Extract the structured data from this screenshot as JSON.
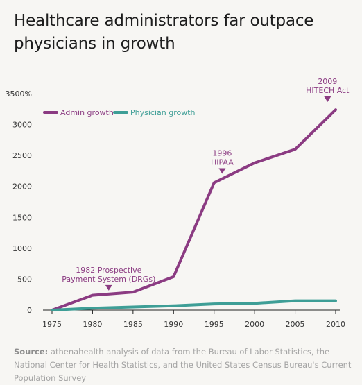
{
  "header": {
    "title_line1": "Healthcare administrators far outpace",
    "title_line2": "physicians in growth"
  },
  "chart_data": {
    "type": "line",
    "x": [
      1975,
      1980,
      1985,
      1990,
      1995,
      2000,
      2005,
      2010
    ],
    "ylim": [
      0,
      3500
    ],
    "xlim": [
      1975,
      2010
    ],
    "y_ticks": [
      0,
      500,
      1000,
      1500,
      2000,
      2500,
      3000,
      3500
    ],
    "y_tick_labels": [
      "0",
      "500",
      "1000",
      "1500",
      "2000",
      "2500",
      "3000",
      "3500%"
    ],
    "x_ticks": [
      1975,
      1980,
      1985,
      1990,
      1995,
      2000,
      2005,
      2010
    ],
    "x_tick_labels": [
      "1975",
      "1980",
      "1985",
      "1990",
      "1995",
      "2000",
      "2005",
      "2010"
    ],
    "grid": false,
    "legend_position": "top-left",
    "series": [
      {
        "name": "Admin growth",
        "color": "#8b3b82",
        "points": [
          [
            1975,
            0
          ],
          [
            1980,
            240
          ],
          [
            1985,
            290
          ],
          [
            1990,
            540
          ],
          [
            1995,
            2060
          ],
          [
            2000,
            2380
          ],
          [
            2005,
            2600
          ],
          [
            2010,
            3240
          ]
        ]
      },
      {
        "name": "Physician growth",
        "color": "#3e9e96",
        "points": [
          [
            1975,
            0
          ],
          [
            1980,
            30
          ],
          [
            1985,
            50
          ],
          [
            1990,
            70
          ],
          [
            1995,
            100
          ],
          [
            2000,
            110
          ],
          [
            2005,
            150
          ],
          [
            2010,
            150
          ]
        ]
      }
    ],
    "annotations": [
      {
        "lines": [
          "1982 Prospective",
          "Payment System (DRGs)"
        ],
        "x": 1982,
        "y": 270,
        "color": "#8b3b82"
      },
      {
        "lines": [
          "1996",
          "HIPAA"
        ],
        "x": 1996,
        "y": 2160,
        "color": "#8b3b82"
      },
      {
        "lines": [
          "2009",
          "HITECH Act"
        ],
        "x": 2009,
        "y": 3320,
        "color": "#8b3b82"
      }
    ]
  },
  "footer": {
    "source_label": "Source:",
    "source_text": " athenahealth analysis of data from the Bureau of Labor Statistics, the National Center for Health Statistics, and the United States Census Bureau's Current Population Survey"
  }
}
